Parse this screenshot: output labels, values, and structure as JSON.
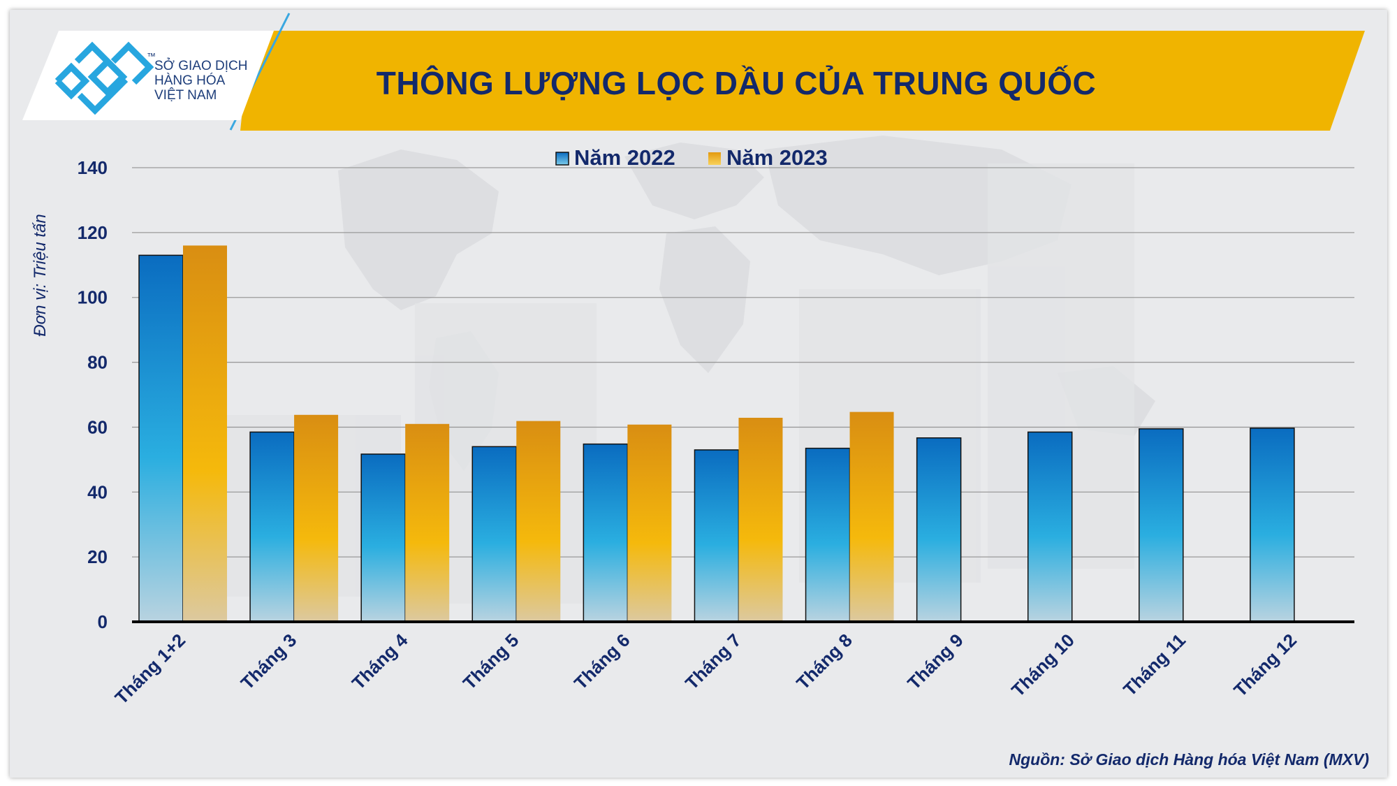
{
  "logo": {
    "line1": "SỞ GIAO DỊCH",
    "line2": "HÀNG HÓA",
    "line3": "VIỆT NAM",
    "tm": "™"
  },
  "source": "Nguồn: Sở Giao dịch Hàng hóa Việt Nam (MXV)",
  "colors": {
    "banner": "#f0b400",
    "title_text": "#13296b",
    "series_2022": "#1a7dc8",
    "series_2023": "#e8a40c",
    "background": "#e9eaec"
  },
  "chart_data": {
    "type": "bar",
    "title": "THÔNG LƯỢNG LỌC DẦU CỦA TRUNG QUỐC",
    "ylabel": "Đơn vị: Triệu tấn",
    "xlabel": "",
    "ylim": [
      0,
      140
    ],
    "yticks": [
      0,
      20,
      40,
      60,
      80,
      100,
      120,
      140
    ],
    "grid": true,
    "legend_position": "top-center",
    "categories": [
      "Tháng 1+2",
      "Tháng 3",
      "Tháng 4",
      "Tháng 5",
      "Tháng 6",
      "Tháng 7",
      "Tháng 8",
      "Tháng 9",
      "Tháng 10",
      "Tháng 11",
      "Tháng 12"
    ],
    "series": [
      {
        "name": "Năm 2022",
        "values": [
          113,
          58.5,
          51.7,
          54,
          54.8,
          53,
          53.5,
          56.7,
          58.5,
          59.5,
          59.7
        ]
      },
      {
        "name": "Năm 2023",
        "values": [
          116,
          63.8,
          61,
          61.9,
          60.8,
          62.9,
          64.7,
          null,
          null,
          null,
          null
        ]
      }
    ]
  }
}
